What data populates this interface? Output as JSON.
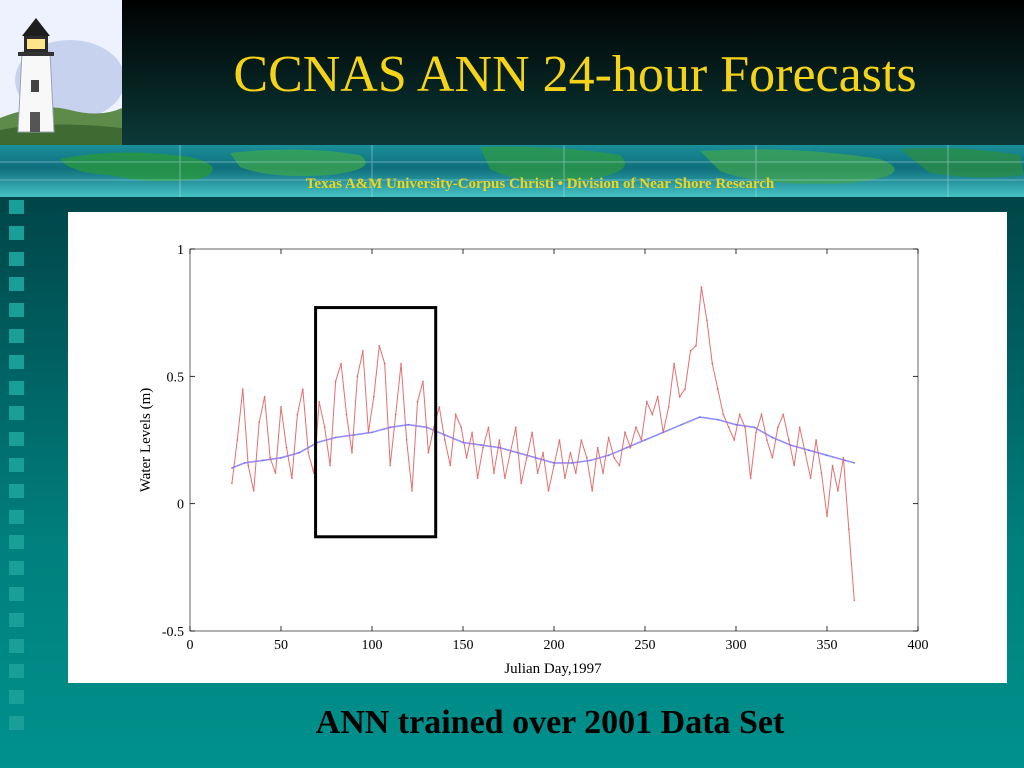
{
  "slide": {
    "title": "CCNAS ANN 24-hour Forecasts",
    "banner_text": "Texas A&M University-Corpus Christi • Division of Near Shore Research",
    "caption": "ANN trained over 2001 Data Set"
  },
  "colors": {
    "title": "#f4d319",
    "banner_text": "#f0d41a",
    "observed_series": "#e06060",
    "forecast_series": "#6a6aff"
  },
  "chart_data": {
    "type": "line",
    "title": "",
    "xlabel": "Julian Day,1997",
    "ylabel": "Water Levels (m)",
    "xlim": [
      0,
      400
    ],
    "ylim": [
      -0.5,
      1
    ],
    "x_ticks": [
      0,
      50,
      100,
      150,
      200,
      250,
      300,
      350,
      400
    ],
    "x_tick_labels": [
      "0",
      "50",
      "100",
      "150",
      "200",
      "250",
      "300",
      "350",
      "400"
    ],
    "y_ticks": [
      -0.5,
      0,
      0.5,
      1
    ],
    "y_tick_labels": [
      "-0.5",
      "0",
      "0.5",
      "1"
    ],
    "highlight_box": {
      "x_range": [
        69,
        135
      ],
      "y_range": [
        -0.13,
        0.77
      ]
    },
    "series": [
      {
        "color": "#e06060",
        "x": [
          23,
          26,
          29,
          32,
          35,
          38,
          41,
          44,
          47,
          50,
          53,
          56,
          59,
          62,
          65,
          68,
          71,
          74,
          77,
          80,
          83,
          86,
          89,
          92,
          95,
          98,
          101,
          104,
          107,
          110,
          113,
          116,
          119,
          122,
          125,
          128,
          131,
          134,
          137,
          140,
          143,
          146,
          149,
          152,
          155,
          158,
          161,
          164,
          167,
          170,
          173,
          176,
          179,
          182,
          185,
          188,
          191,
          194,
          197,
          200,
          203,
          206,
          209,
          212,
          215,
          218,
          221,
          224,
          227,
          230,
          233,
          236,
          239,
          242,
          245,
          248,
          251,
          254,
          257,
          260,
          263,
          266,
          269,
          272,
          275,
          278,
          281,
          284,
          287,
          290,
          293,
          296,
          299,
          302,
          305,
          308,
          311,
          314,
          317,
          320,
          323,
          326,
          329,
          332,
          335,
          338,
          341,
          344,
          347,
          350,
          353,
          356,
          359,
          362,
          365
        ],
        "y": [
          0.08,
          0.25,
          0.45,
          0.15,
          0.05,
          0.32,
          0.42,
          0.18,
          0.12,
          0.38,
          0.22,
          0.1,
          0.35,
          0.45,
          0.2,
          0.12,
          0.4,
          0.3,
          0.15,
          0.48,
          0.55,
          0.35,
          0.2,
          0.5,
          0.6,
          0.28,
          0.42,
          0.62,
          0.55,
          0.15,
          0.35,
          0.55,
          0.25,
          0.05,
          0.4,
          0.48,
          0.2,
          0.3,
          0.38,
          0.25,
          0.15,
          0.35,
          0.3,
          0.18,
          0.28,
          0.1,
          0.22,
          0.3,
          0.12,
          0.25,
          0.1,
          0.2,
          0.3,
          0.08,
          0.18,
          0.28,
          0.12,
          0.2,
          0.05,
          0.15,
          0.25,
          0.1,
          0.2,
          0.12,
          0.25,
          0.18,
          0.05,
          0.22,
          0.12,
          0.26,
          0.18,
          0.15,
          0.28,
          0.22,
          0.3,
          0.25,
          0.4,
          0.35,
          0.42,
          0.28,
          0.38,
          0.55,
          0.42,
          0.45,
          0.6,
          0.62,
          0.85,
          0.72,
          0.55,
          0.45,
          0.35,
          0.3,
          0.25,
          0.35,
          0.3,
          0.1,
          0.28,
          0.35,
          0.25,
          0.18,
          0.3,
          0.35,
          0.25,
          0.15,
          0.3,
          0.2,
          0.1,
          0.25,
          0.12,
          -0.05,
          0.15,
          0.05,
          0.18,
          -0.1,
          -0.38
        ]
      },
      {
        "color": "#6a6aff",
        "x": [
          23,
          30,
          40,
          50,
          60,
          70,
          80,
          90,
          100,
          110,
          120,
          130,
          140,
          150,
          160,
          170,
          180,
          190,
          200,
          210,
          220,
          230,
          240,
          250,
          260,
          270,
          280,
          290,
          300,
          310,
          320,
          330,
          340,
          350,
          360,
          365
        ],
        "y": [
          0.14,
          0.16,
          0.17,
          0.18,
          0.2,
          0.24,
          0.26,
          0.27,
          0.28,
          0.3,
          0.31,
          0.3,
          0.27,
          0.24,
          0.23,
          0.22,
          0.2,
          0.18,
          0.16,
          0.16,
          0.17,
          0.19,
          0.22,
          0.25,
          0.28,
          0.31,
          0.34,
          0.33,
          0.31,
          0.3,
          0.26,
          0.23,
          0.21,
          0.19,
          0.17,
          0.16
        ]
      }
    ]
  }
}
